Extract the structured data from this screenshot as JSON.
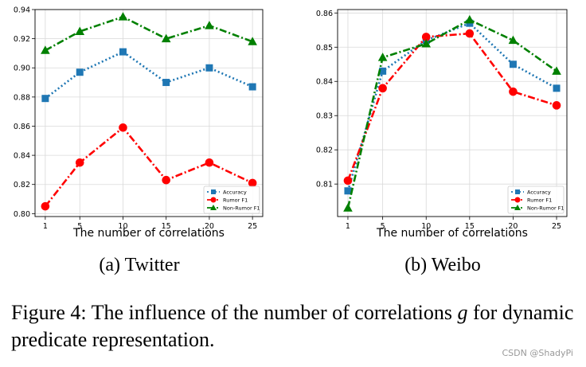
{
  "chart_data": [
    {
      "type": "line",
      "subcaption": "(a) Twitter",
      "xlabel": "The number of correlations",
      "ylabel": "",
      "x": [
        1,
        5,
        10,
        15,
        20,
        25
      ],
      "xticks": [
        "1",
        "5",
        "10",
        "15",
        "20",
        "25"
      ],
      "ylim": [
        0.8,
        0.94
      ],
      "yticks": [
        "0.80",
        "0.82",
        "0.84",
        "0.86",
        "0.88",
        "0.90",
        "0.92",
        "0.94"
      ],
      "yticks_values": [
        0.8,
        0.82,
        0.84,
        0.86,
        0.88,
        0.9,
        0.92,
        0.94
      ],
      "grid": true,
      "legend_position": "bottom-right",
      "series": [
        {
          "name": "Accuracy",
          "values": [
            0.879,
            0.897,
            0.911,
            0.89,
            0.9,
            0.887
          ],
          "color": "#1f77b4",
          "marker": "square",
          "linestyle": "dotted"
        },
        {
          "name": "Rumor F1",
          "values": [
            0.805,
            0.835,
            0.859,
            0.823,
            0.835,
            0.821
          ],
          "color": "#ff0000",
          "marker": "circle",
          "linestyle": "dashdot"
        },
        {
          "name": "Non-Rumor F1",
          "values": [
            0.912,
            0.925,
            0.935,
            0.92,
            0.929,
            0.918
          ],
          "color": "#008000",
          "marker": "triangle",
          "linestyle": "dashdot"
        }
      ]
    },
    {
      "type": "line",
      "subcaption": "(b) Weibo",
      "xlabel": "The number of correlations",
      "ylabel": "",
      "x": [
        1,
        5,
        10,
        15,
        20,
        25
      ],
      "xticks": [
        "1",
        "5",
        "10",
        "15",
        "20",
        "25"
      ],
      "ylim": [
        0.8,
        0.86
      ],
      "yticks": [
        "0.81",
        "0.82",
        "0.83",
        "0.84",
        "0.85",
        "0.86"
      ],
      "yticks_values": [
        0.81,
        0.82,
        0.83,
        0.84,
        0.85,
        0.86
      ],
      "grid": true,
      "legend_position": "bottom-right",
      "series": [
        {
          "name": "Accuracy",
          "values": [
            0.808,
            0.843,
            0.852,
            0.857,
            0.845,
            0.838
          ],
          "color": "#1f77b4",
          "marker": "square",
          "linestyle": "dotted"
        },
        {
          "name": "Rumor F1",
          "values": [
            0.811,
            0.838,
            0.853,
            0.854,
            0.837,
            0.833
          ],
          "color": "#ff0000",
          "marker": "circle",
          "linestyle": "dashdot"
        },
        {
          "name": "Non-Rumor F1",
          "values": [
            0.803,
            0.847,
            0.851,
            0.858,
            0.852,
            0.843
          ],
          "color": "#008000",
          "marker": "triangle",
          "linestyle": "dashdot"
        }
      ]
    }
  ],
  "figure_caption": {
    "prefix": "Figure 4: The influence of the number of correlations ",
    "symbol": "g",
    "suffix": " for dynamic predicate representation."
  },
  "watermark": "CSDN @ShadyPi"
}
